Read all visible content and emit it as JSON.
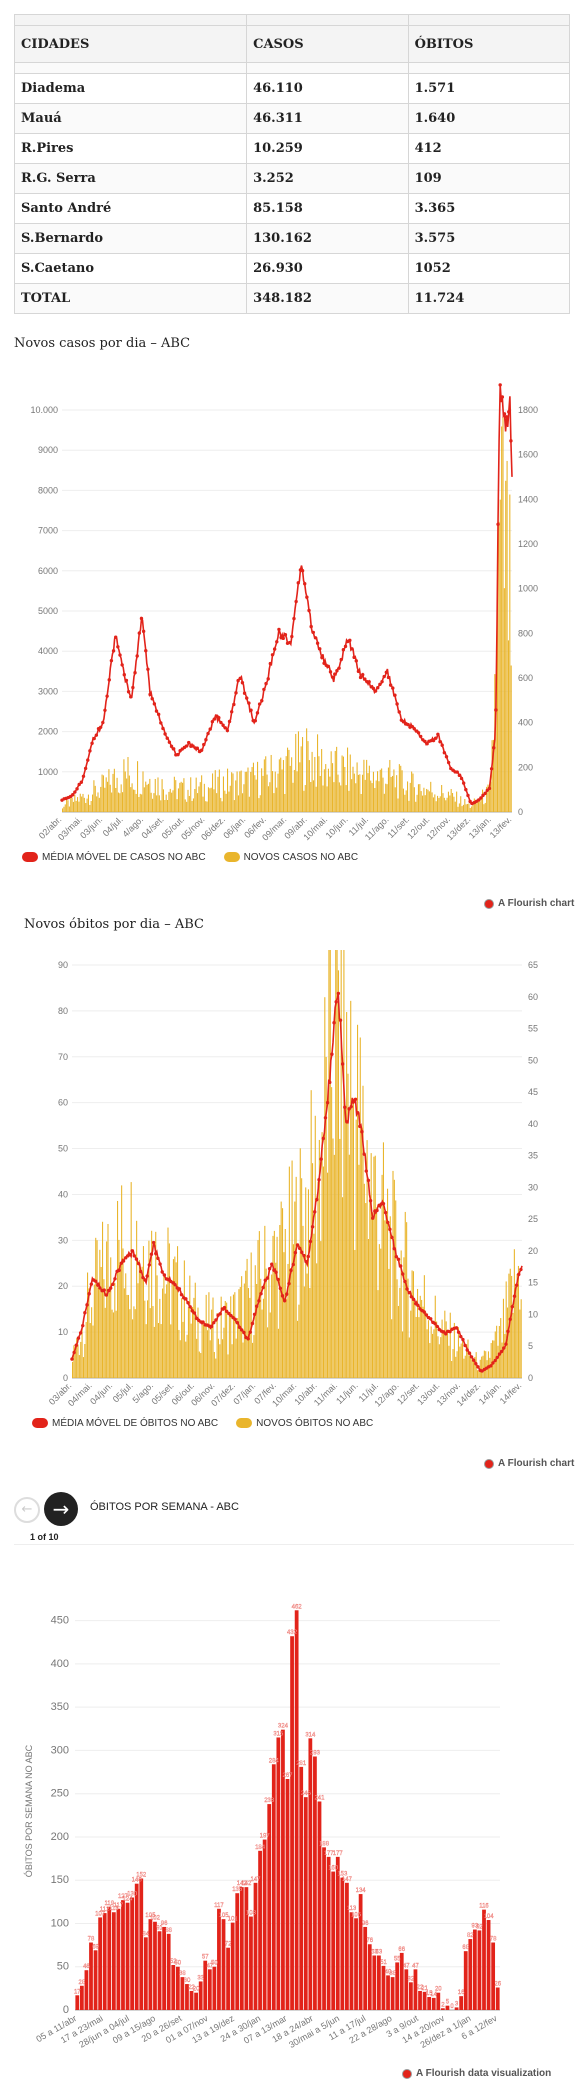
{
  "table": {
    "headers": [
      "CIDADES",
      "CASOS",
      "ÓBITOS"
    ],
    "rows": [
      [
        "Diadema",
        "46.110",
        "1.571"
      ],
      [
        "Mauá",
        "46.311",
        "1.640"
      ],
      [
        "R.Pires",
        "10.259",
        "412"
      ],
      [
        "R.G. Serra",
        "3.252",
        "109"
      ],
      [
        "Santo André",
        "85.158",
        "3.365"
      ],
      [
        "S.Bernardo",
        "130.162",
        "3.575"
      ],
      [
        "S.Caetano",
        "26.930",
        "1052"
      ],
      [
        "TOTAL",
        "348.182",
        "11.724"
      ]
    ]
  },
  "chart1": {
    "title": "Novos casos por dia – ABC",
    "legend": [
      "MÉDIA MÓVEL DE CASOS NO ABC",
      "NOVOS CASOS NO ABC"
    ],
    "credit": "A Flourish chart"
  },
  "chart2": {
    "title": "Novos óbitos por dia – ABC",
    "legend": [
      "MÉDIA MÓVEL DE ÓBITOS NO ABC",
      "NOVOS ÓBITOS NO ABC"
    ],
    "credit": "A Flourish chart"
  },
  "chart3": {
    "nav_title": "ÓBITOS POR SEMANA - ABC",
    "pager": "1 of 10",
    "credit": "A Flourish data visualization"
  },
  "colors": {
    "red": "#e2231a",
    "yellow": "#e9b52c"
  },
  "chart_data": [
    {
      "type": "line",
      "title": "Novos casos por dia – ABC",
      "ylabel": "",
      "y_left_ticks": [
        "1000",
        "2000",
        "3000",
        "4000",
        "5000",
        "6000",
        "7000",
        "8000",
        "9000",
        "10.000"
      ],
      "y_right_ticks": [
        "0",
        "200",
        "400",
        "600",
        "800",
        "1000",
        "1200",
        "1400",
        "1600",
        "1800"
      ],
      "ylim_left": [
        0,
        10000
      ],
      "ylim_right": [
        0,
        1800
      ],
      "x_ticks": [
        "02/abr.",
        "03/mai.",
        "03/jun.",
        "04/jul.",
        "4/ago.",
        "04/set.",
        "05/out.",
        "05/nov.",
        "06/dez.",
        "06/jan.",
        "06/fev.",
        "09/mar.",
        "09/abr.",
        "10/mai.",
        "10/jun.",
        "11/jul.",
        "11/ago.",
        "11/set.",
        "12/out.",
        "12/nov.",
        "13/dez.",
        "13/jan.",
        "13/fev."
      ],
      "series": [
        {
          "name": "MÉDIA MÓVEL DE CASOS NO ABC",
          "axis": "left",
          "style": "line",
          "points": [
            [
              0,
              300
            ],
            [
              0.5,
              400
            ],
            [
              1,
              800
            ],
            [
              1.5,
              1800
            ],
            [
              2,
              2200
            ],
            [
              2.6,
              4400
            ],
            [
              3,
              3500
            ],
            [
              3.4,
              2800
            ],
            [
              3.9,
              4900
            ],
            [
              4.3,
              3000
            ],
            [
              5,
              2000
            ],
            [
              5.6,
              1400
            ],
            [
              6.2,
              1700
            ],
            [
              6.8,
              1500
            ],
            [
              7.5,
              2400
            ],
            [
              8.1,
              2000
            ],
            [
              8.7,
              3400
            ],
            [
              9.4,
              2200
            ],
            [
              10,
              3200
            ],
            [
              10.6,
              4500
            ],
            [
              11.2,
              4200
            ],
            [
              11.7,
              6200
            ],
            [
              12.2,
              4600
            ],
            [
              12.7,
              3900
            ],
            [
              13.3,
              3300
            ],
            [
              14,
              4300
            ],
            [
              14.6,
              3400
            ],
            [
              15.3,
              3000
            ],
            [
              15.9,
              3500
            ],
            [
              16.6,
              2300
            ],
            [
              17.2,
              2100
            ],
            [
              17.8,
              1700
            ],
            [
              18.4,
              1900
            ],
            [
              19,
              1100
            ],
            [
              19.5,
              900
            ],
            [
              20,
              200
            ],
            [
              20.4,
              300
            ],
            [
              20.9,
              600
            ],
            [
              21.2,
              2000
            ],
            [
              21.4,
              10500
            ],
            [
              21.7,
              9500
            ],
            [
              21.9,
              10200
            ],
            [
              22.1,
              6800
            ],
            [
              22.3,
              5500
            ],
            [
              22.6,
              3200
            ],
            [
              22.8,
              2200
            ],
            [
              23,
              1800
            ],
            [
              23.3,
              1600
            ]
          ]
        },
        {
          "name": "NOVOS CASOS NO ABC",
          "axis": "right",
          "style": "bars",
          "points": [
            [
              0,
              30
            ],
            [
              2,
              120
            ],
            [
              3,
              190
            ],
            [
              4,
              180
            ],
            [
              5,
              120
            ],
            [
              6,
              110
            ],
            [
              7,
              120
            ],
            [
              8,
              140
            ],
            [
              9,
              150
            ],
            [
              10,
              180
            ],
            [
              11,
              220
            ],
            [
              12,
              280
            ],
            [
              13,
              210
            ],
            [
              14,
              200
            ],
            [
              15,
              180
            ],
            [
              16,
              170
            ],
            [
              17,
              130
            ],
            [
              18,
              110
            ],
            [
              19,
              80
            ],
            [
              20,
              30
            ],
            [
              21,
              100
            ],
            [
              21.5,
              1400
            ],
            [
              21.8,
              1200
            ],
            [
              22.2,
              650
            ],
            [
              22.6,
              180
            ],
            [
              23,
              130
            ],
            [
              23.3,
              80
            ]
          ]
        }
      ]
    },
    {
      "type": "line",
      "title": "Novos óbitos por dia – ABC",
      "ylabel": "",
      "y_left_ticks": [
        "0",
        "10",
        "20",
        "30",
        "40",
        "50",
        "60",
        "70",
        "80",
        "90"
      ],
      "y_right_ticks": [
        "0",
        "5",
        "10",
        "15",
        "20",
        "25",
        "30",
        "35",
        "40",
        "45",
        "50",
        "55",
        "60",
        "65"
      ],
      "ylim_left": [
        0,
        90
      ],
      "ylim_right": [
        0,
        65
      ],
      "x_ticks": [
        "03/abr.",
        "04/mai.",
        "04/jun.",
        "05/jul.",
        "5/ago.",
        "05/set.",
        "06/out.",
        "06/nov.",
        "07/dez.",
        "07/jan.",
        "07/fev.",
        "10/mar.",
        "10/abr.",
        "11/mai.",
        "11/jun.",
        "11/jul.",
        "12/ago.",
        "12/set.",
        "13/out.",
        "13/nov.",
        "14/dez.",
        "14/jan.",
        "14/fev."
      ],
      "series": [
        {
          "name": "MÉDIA MÓVEL DE ÓBITOS NO ABC",
          "axis": "right",
          "style": "line",
          "points": [
            [
              0,
              3
            ],
            [
              0.5,
              8
            ],
            [
              1,
              16
            ],
            [
              1.7,
              13
            ],
            [
              2.4,
              18
            ],
            [
              3,
              20
            ],
            [
              3.6,
              15
            ],
            [
              4,
              21
            ],
            [
              4.5,
              16
            ],
            [
              5,
              15
            ],
            [
              5.6,
              12
            ],
            [
              6.2,
              9
            ],
            [
              6.8,
              8
            ],
            [
              7.4,
              11
            ],
            [
              8,
              9
            ],
            [
              8.6,
              6
            ],
            [
              9.2,
              13
            ],
            [
              9.8,
              18
            ],
            [
              10.4,
              12
            ],
            [
              11,
              21
            ],
            [
              11.5,
              18
            ],
            [
              12,
              29
            ],
            [
              12.5,
              44
            ],
            [
              13,
              62
            ],
            [
              13.4,
              40
            ],
            [
              13.8,
              44
            ],
            [
              14.2,
              38
            ],
            [
              14.7,
              25
            ],
            [
              15.2,
              28
            ],
            [
              15.8,
              20
            ],
            [
              16.4,
              14
            ],
            [
              17,
              11
            ],
            [
              17.6,
              9
            ],
            [
              18.2,
              7
            ],
            [
              18.8,
              8
            ],
            [
              19.4,
              4
            ],
            [
              20,
              1
            ],
            [
              20.5,
              2
            ],
            [
              21.2,
              5
            ],
            [
              21.8,
              16
            ],
            [
              22.2,
              19
            ],
            [
              22.6,
              13
            ],
            [
              22.9,
              6
            ],
            [
              23.2,
              7
            ]
          ]
        },
        {
          "name": "NOVOS ÓBITOS NO ABC",
          "axis": "left",
          "style": "bars",
          "points": [
            [
              0,
              5
            ],
            [
              1,
              20
            ],
            [
              2,
              30
            ],
            [
              3,
              35
            ],
            [
              4,
              28
            ],
            [
              5,
              22
            ],
            [
              6,
              15
            ],
            [
              7,
              12
            ],
            [
              8,
              15
            ],
            [
              9,
              22
            ],
            [
              10,
              28
            ],
            [
              11,
              35
            ],
            [
              12,
              48
            ],
            [
              13,
              90
            ],
            [
              14,
              60
            ],
            [
              15,
              40
            ],
            [
              16,
              28
            ],
            [
              17,
              20
            ],
            [
              18,
              12
            ],
            [
              19,
              8
            ],
            [
              20,
              3
            ],
            [
              21,
              10
            ],
            [
              22,
              28
            ],
            [
              23,
              15
            ]
          ]
        }
      ]
    },
    {
      "type": "bar",
      "title": "",
      "ylabel": "ÓBITOS POR SEMANA NO ABC",
      "ylim": [
        0,
        460
      ],
      "y_ticks": [
        "0",
        "50",
        "100",
        "150",
        "200",
        "250",
        "300",
        "350",
        "400",
        "450"
      ],
      "x_ticks": [
        "05 a 11/abr",
        "17 a 23/mai",
        "28/jun a 04/jul",
        "09 a 15/ago",
        "20 a 26/set",
        "01 a 07/nov",
        "13 a 19/dez",
        "24 a 30/jan",
        "07 a 13/mar",
        "18 a 24/abr",
        "30/mai a 5/jun",
        "11 a 17/jul",
        "22 a 28/ago",
        "3 a 9/out",
        "14 a 20/nov",
        "26/dez a 1/jan",
        "6 a 12/fev"
      ],
      "values": [
        17,
        28,
        46,
        78,
        69,
        107,
        112,
        119,
        113,
        117,
        127,
        124,
        130,
        146,
        152,
        84,
        105,
        102,
        91,
        96,
        88,
        52,
        50,
        38,
        30,
        22,
        20,
        33,
        57,
        47,
        50,
        117,
        105,
        72,
        101,
        135,
        142,
        142,
        108,
        147,
        184,
        197,
        238,
        284,
        315,
        324,
        267,
        432,
        462,
        281,
        246,
        314,
        293,
        241,
        188,
        177,
        160,
        177,
        153,
        147,
        113,
        106,
        134,
        96,
        76,
        63,
        63,
        51,
        40,
        38,
        55,
        66,
        47,
        32,
        47,
        22,
        21,
        15,
        14,
        20,
        2,
        5,
        0,
        3,
        16,
        68,
        82,
        93,
        92,
        116,
        104,
        78,
        26
      ]
    }
  ]
}
